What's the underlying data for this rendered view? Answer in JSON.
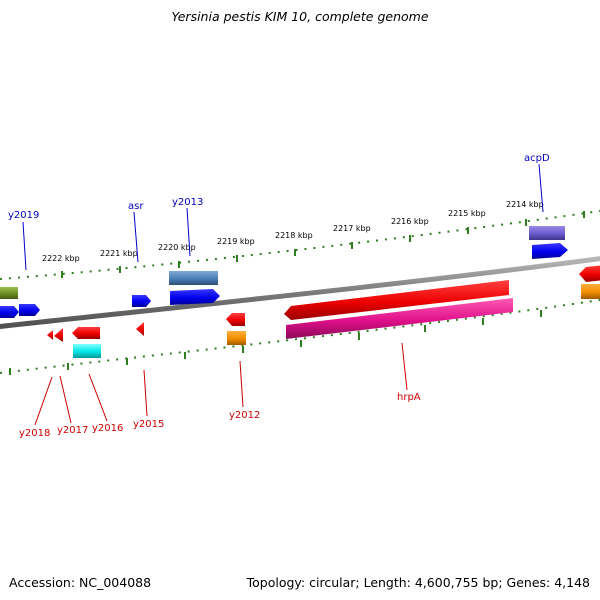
{
  "title": "Yersinia pestis KIM 10, complete genome",
  "footer": {
    "accession": "Accession: NC_004088",
    "topology": "Topology: circular; Length: 4,600,755 bp; Genes: 4,148"
  },
  "scale_labels": [
    "2222 kbp",
    "2221 kbp",
    "2220 kbp",
    "2219 kbp",
    "2218 kbp",
    "2217 kbp",
    "2216 kbp",
    "2215 kbp",
    "2214 kbp"
  ],
  "genes_top": [
    {
      "label": "y2019",
      "color": "#0000bb"
    },
    {
      "label": "asr",
      "color": "#0000bb"
    },
    {
      "label": "y2013",
      "color": "#0000bb"
    },
    {
      "label": "acpD",
      "color": "#0000bb"
    }
  ],
  "genes_bottom": [
    {
      "label": "y2018",
      "color": "#cc0000"
    },
    {
      "label": "y2017",
      "color": "#cc0000"
    },
    {
      "label": "y2016",
      "color": "#cc0000"
    },
    {
      "label": "y2015",
      "color": "#cc0000"
    },
    {
      "label": "y2012",
      "color": "#cc0000"
    },
    {
      "label": "hrpA",
      "color": "#cc0000"
    }
  ],
  "colors": {
    "backbone": "#808080",
    "scale": "#2e7d1f",
    "forward_gene": "#0000ee",
    "reverse_gene": "#ee0000",
    "hrpA_partner": "#e0108a",
    "cyan_feature": "#00e5e5",
    "orange_feature": "#f08c00",
    "steel_feature": "#4a7fb5",
    "olive_feature": "#6b8e23",
    "violet_feature": "#6a5acd"
  }
}
